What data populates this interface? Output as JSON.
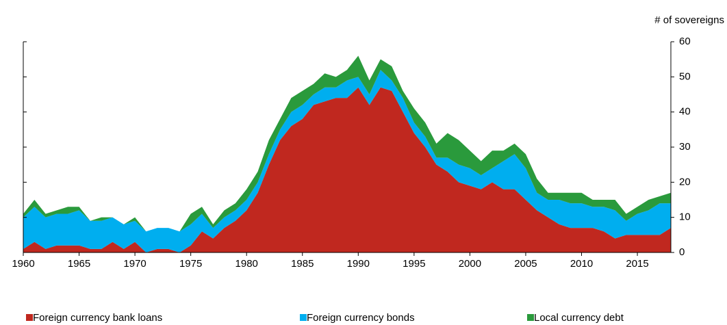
{
  "chart_data": {
    "type": "stacked_area",
    "y_label": "# of sovereigns",
    "x": [
      1960,
      1961,
      1962,
      1963,
      1964,
      1965,
      1966,
      1967,
      1968,
      1969,
      1970,
      1971,
      1972,
      1973,
      1974,
      1975,
      1976,
      1977,
      1978,
      1979,
      1980,
      1981,
      1982,
      1983,
      1984,
      1985,
      1986,
      1987,
      1988,
      1989,
      1990,
      1991,
      1992,
      1993,
      1994,
      1995,
      1996,
      1997,
      1998,
      1999,
      2000,
      2001,
      2002,
      2003,
      2004,
      2005,
      2006,
      2007,
      2008,
      2009,
      2010,
      2011,
      2012,
      2013,
      2014,
      2015,
      2016,
      2017,
      2018
    ],
    "xlim": [
      1960,
      2018
    ],
    "xticks": [
      1960,
      1965,
      1970,
      1975,
      1980,
      1985,
      1990,
      1995,
      2000,
      2005,
      2010,
      2015
    ],
    "ylim": [
      0,
      60
    ],
    "yticks": [
      0,
      10,
      20,
      30,
      40,
      50,
      60
    ],
    "y_axis_side": "right",
    "series": [
      {
        "name": "Foreign currency bank loans",
        "color": "#c0281f",
        "values": [
          1,
          3,
          1,
          2,
          2,
          2,
          1,
          1,
          3,
          1,
          3,
          0,
          1,
          1,
          0,
          2,
          6,
          4,
          7,
          9,
          12,
          17,
          25,
          32,
          36,
          38,
          42,
          43,
          44,
          44,
          47,
          42,
          47,
          46,
          40,
          34,
          30,
          25,
          23,
          20,
          19,
          18,
          20,
          18,
          18,
          15,
          12,
          10,
          8,
          7,
          7,
          7,
          6,
          4,
          5,
          5,
          5,
          5,
          7
        ]
      },
      {
        "name": "Foreign currency bonds",
        "color": "#00aeef",
        "values": [
          9,
          10,
          9,
          9,
          9,
          10,
          8,
          8,
          7,
          7,
          6,
          6,
          6,
          6,
          6,
          6,
          5,
          3,
          3,
          3,
          3,
          3,
          3,
          3,
          4,
          4,
          3,
          4,
          3,
          5,
          3,
          3,
          5,
          3,
          4,
          3,
          3,
          2,
          4,
          5,
          5,
          4,
          4,
          8,
          10,
          9,
          5,
          5,
          7,
          7,
          7,
          6,
          7,
          8,
          4,
          6,
          7,
          9,
          7
        ]
      },
      {
        "name": "Local currency debt",
        "color": "#2a9a3c",
        "values": [
          1,
          2,
          1,
          1,
          2,
          1,
          0,
          1,
          0,
          0,
          1,
          0,
          0,
          0,
          0,
          3,
          2,
          1,
          2,
          2,
          3,
          3,
          4,
          3,
          4,
          4,
          3,
          4,
          3,
          3,
          6,
          4,
          3,
          4,
          2,
          4,
          4,
          4,
          7,
          7,
          5,
          4,
          5,
          3,
          3,
          4,
          4,
          2,
          2,
          3,
          3,
          2,
          2,
          3,
          2,
          2,
          3,
          2,
          3
        ]
      }
    ]
  }
}
